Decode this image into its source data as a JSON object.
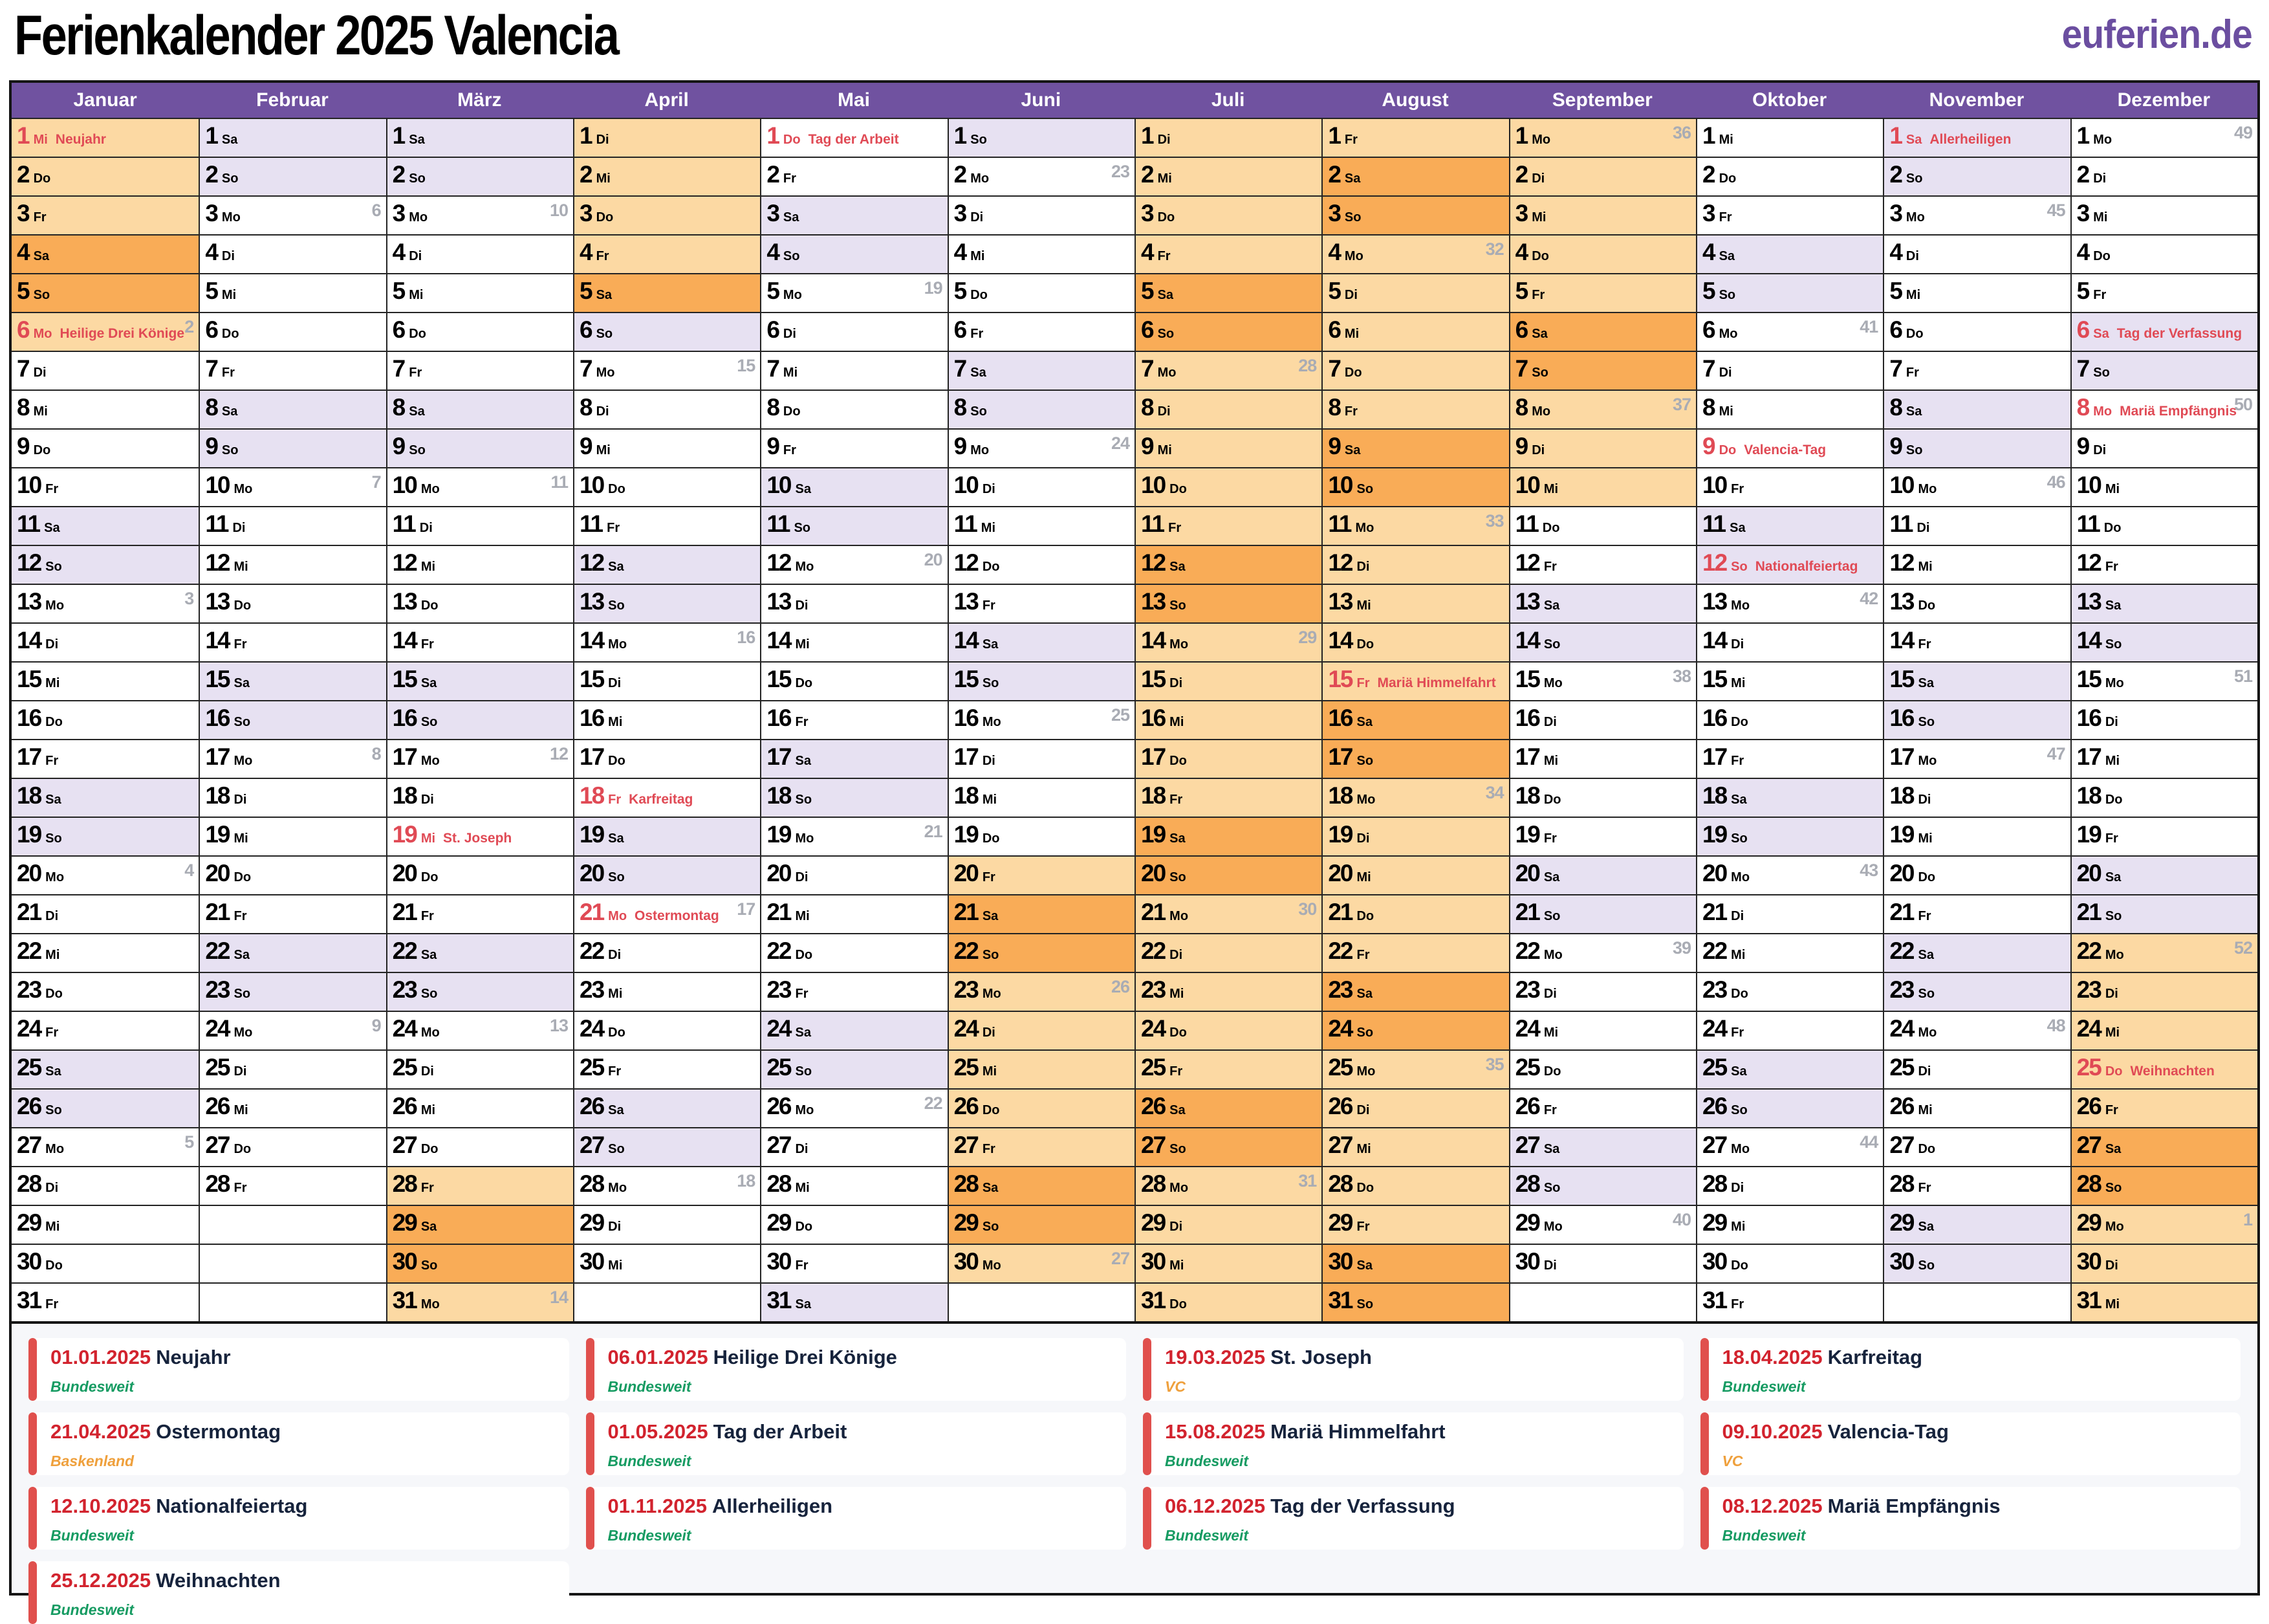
{
  "page": {
    "title": "Ferienkalender 2025 Valencia",
    "logo": "euferien.de"
  },
  "colors": {
    "header_purple": "#7052A0",
    "weekend": "#E7E1F2",
    "vacation": "#FCD9A3",
    "vacation_weekend": "#F9AC57",
    "holiday_red": "#E04A55",
    "week_gray": "#A9ACB4",
    "legend_date_red": "#D2232E",
    "legend_bar": "#E0504D",
    "region_national": "#169B62",
    "region_regional": "#EFA03C",
    "logo": "#6B4EA0"
  },
  "weekday_abbreviations": [
    "Mo",
    "Di",
    "Mi",
    "Do",
    "Fr",
    "Sa",
    "So"
  ],
  "months": [
    {
      "name": "Januar",
      "days": 31,
      "first_weekday": "Mi",
      "vacation_ranges": [
        [
          1,
          6
        ]
      ],
      "holidays": {
        "1": "Neujahr",
        "6": "Heilige Drei Könige"
      },
      "weeks": {
        "6": 2,
        "13": 3,
        "20": 4,
        "27": 5
      }
    },
    {
      "name": "Februar",
      "days": 28,
      "first_weekday": "Sa",
      "vacation_ranges": [],
      "holidays": {},
      "weeks": {
        "3": 6,
        "10": 7,
        "17": 8,
        "24": 9
      }
    },
    {
      "name": "März",
      "days": 31,
      "first_weekday": "Sa",
      "vacation_ranges": [
        [
          28,
          31
        ]
      ],
      "holidays": {
        "19": "St. Joseph"
      },
      "weeks": {
        "3": 10,
        "10": 11,
        "17": 12,
        "24": 13,
        "31": 14
      }
    },
    {
      "name": "April",
      "days": 30,
      "first_weekday": "Di",
      "vacation_ranges": [
        [
          1,
          5
        ]
      ],
      "holidays": {
        "18": "Karfreitag",
        "21": "Ostermontag"
      },
      "weeks": {
        "7": 15,
        "14": 16,
        "21": 17,
        "28": 18
      }
    },
    {
      "name": "Mai",
      "days": 31,
      "first_weekday": "Do",
      "vacation_ranges": [],
      "holidays": {
        "1": "Tag der Arbeit"
      },
      "weeks": {
        "5": 19,
        "12": 20,
        "19": 21,
        "26": 22
      }
    },
    {
      "name": "Juni",
      "days": 30,
      "first_weekday": "So",
      "vacation_ranges": [
        [
          20,
          30
        ]
      ],
      "holidays": {},
      "weeks": {
        "2": 23,
        "9": 24,
        "16": 25,
        "23": 26,
        "30": 27
      }
    },
    {
      "name": "Juli",
      "days": 31,
      "first_weekday": "Di",
      "vacation_ranges": [
        [
          1,
          31
        ]
      ],
      "holidays": {},
      "weeks": {
        "7": 28,
        "14": 29,
        "21": 30,
        "28": 31
      }
    },
    {
      "name": "August",
      "days": 31,
      "first_weekday": "Fr",
      "vacation_ranges": [
        [
          1,
          31
        ]
      ],
      "holidays": {
        "15": "Mariä Himmelfahrt"
      },
      "weeks": {
        "4": 32,
        "11": 33,
        "18": 34,
        "25": 35
      }
    },
    {
      "name": "September",
      "days": 30,
      "first_weekday": "Mo",
      "vacation_ranges": [
        [
          1,
          10
        ]
      ],
      "holidays": {},
      "weeks": {
        "1": 36,
        "8": 37,
        "15": 38,
        "22": 39,
        "29": 40
      }
    },
    {
      "name": "Oktober",
      "days": 31,
      "first_weekday": "Mi",
      "vacation_ranges": [],
      "holidays": {
        "9": "Valencia-Tag",
        "12": "Nationalfeiertag"
      },
      "weeks": {
        "6": 41,
        "13": 42,
        "20": 43,
        "27": 44
      }
    },
    {
      "name": "November",
      "days": 30,
      "first_weekday": "Sa",
      "vacation_ranges": [],
      "holidays": {
        "1": "Allerheiligen"
      },
      "weeks": {
        "3": 45,
        "10": 46,
        "17": 47,
        "24": 48
      }
    },
    {
      "name": "Dezember",
      "days": 31,
      "first_weekday": "Mo",
      "vacation_ranges": [
        [
          22,
          31
        ]
      ],
      "holidays": {
        "6": "Tag der Verfassung",
        "8": "Mariä Empfängnis",
        "25": "Weihnachten"
      },
      "weeks": {
        "1": 49,
        "8": 50,
        "15": 51,
        "22": 52,
        "29": 1
      }
    }
  ],
  "legend": [
    {
      "date": "01.01.2025",
      "name": "Neujahr",
      "region": "Bundesweit",
      "region_type": "national"
    },
    {
      "date": "06.01.2025",
      "name": "Heilige Drei Könige",
      "region": "Bundesweit",
      "region_type": "national"
    },
    {
      "date": "19.03.2025",
      "name": "St. Joseph",
      "region": "VC",
      "region_type": "regional"
    },
    {
      "date": "18.04.2025",
      "name": "Karfreitag",
      "region": "Bundesweit",
      "region_type": "national"
    },
    {
      "date": "21.04.2025",
      "name": "Ostermontag",
      "region": "Baskenland",
      "region_type": "regional"
    },
    {
      "date": "01.05.2025",
      "name": "Tag der Arbeit",
      "region": "Bundesweit",
      "region_type": "national"
    },
    {
      "date": "15.08.2025",
      "name": "Mariä Himmelfahrt",
      "region": "Bundesweit",
      "region_type": "national"
    },
    {
      "date": "09.10.2025",
      "name": "Valencia-Tag",
      "region": "VC",
      "region_type": "regional"
    },
    {
      "date": "12.10.2025",
      "name": "Nationalfeiertag",
      "region": "Bundesweit",
      "region_type": "national"
    },
    {
      "date": "01.11.2025",
      "name": "Allerheiligen",
      "region": "Bundesweit",
      "region_type": "national"
    },
    {
      "date": "06.12.2025",
      "name": "Tag der Verfassung",
      "region": "Bundesweit",
      "region_type": "national"
    },
    {
      "date": "08.12.2025",
      "name": "Mariä Empfängnis",
      "region": "Bundesweit",
      "region_type": "national"
    },
    {
      "date": "25.12.2025",
      "name": "Weihnachten",
      "region": "Bundesweit",
      "region_type": "national"
    }
  ]
}
